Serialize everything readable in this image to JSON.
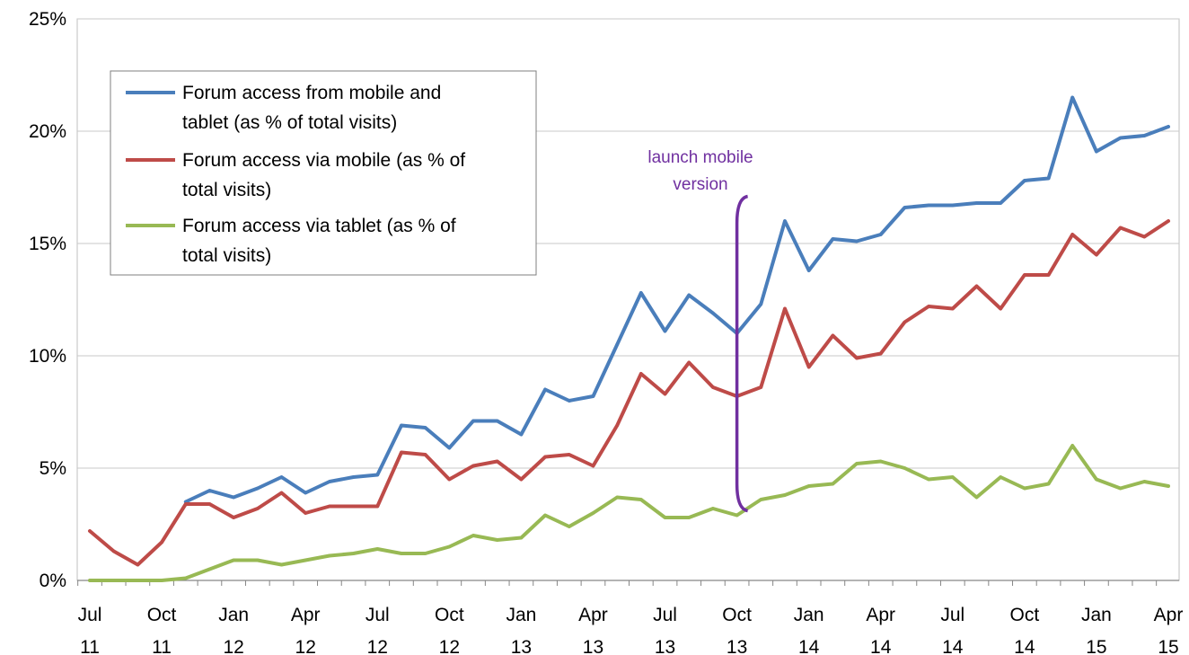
{
  "chart_data": {
    "type": "line",
    "title": "",
    "xlabel": "",
    "ylabel": "",
    "ylim": [
      0,
      25
    ],
    "y_ticks": [
      0,
      5,
      10,
      15,
      20,
      25
    ],
    "y_tick_labels": [
      "0%",
      "5%",
      "10%",
      "15%",
      "20%",
      "25%"
    ],
    "grid": "horizontal",
    "legend_position": "top-left",
    "categories": [
      "Jul 11",
      "Aug 11",
      "Sep 11",
      "Oct 11",
      "Nov 11",
      "Dec 11",
      "Jan 12",
      "Feb 12",
      "Mar 12",
      "Apr 12",
      "May 12",
      "Jun 12",
      "Jul 12",
      "Aug 12",
      "Sep 12",
      "Oct 12",
      "Nov 12",
      "Dec 12",
      "Jan 13",
      "Feb 13",
      "Mar 13",
      "Apr 13",
      "May 13",
      "Jun 13",
      "Jul 13",
      "Aug 13",
      "Sep 13",
      "Oct 13",
      "Nov 13",
      "Dec 13",
      "Jan 14",
      "Feb 14",
      "Mar 14",
      "Apr 14",
      "May 14",
      "Jun 14",
      "Jul 14",
      "Aug 14",
      "Sep 14",
      "Oct 14",
      "Nov 14",
      "Dec 14",
      "Jan 15",
      "Feb 15",
      "Mar 15",
      "Apr 15"
    ],
    "x_tick_labels": [
      {
        "index": 0,
        "month": "Jul",
        "year": "11"
      },
      {
        "index": 3,
        "month": "Oct",
        "year": "11"
      },
      {
        "index": 6,
        "month": "Jan",
        "year": "12"
      },
      {
        "index": 9,
        "month": "Apr",
        "year": "12"
      },
      {
        "index": 12,
        "month": "Jul",
        "year": "12"
      },
      {
        "index": 15,
        "month": "Oct",
        "year": "12"
      },
      {
        "index": 18,
        "month": "Jan",
        "year": "13"
      },
      {
        "index": 21,
        "month": "Apr",
        "year": "13"
      },
      {
        "index": 24,
        "month": "Jul",
        "year": "13"
      },
      {
        "index": 27,
        "month": "Oct",
        "year": "13"
      },
      {
        "index": 30,
        "month": "Jan",
        "year": "14"
      },
      {
        "index": 33,
        "month": "Apr",
        "year": "14"
      },
      {
        "index": 36,
        "month": "Jul",
        "year": "14"
      },
      {
        "index": 39,
        "month": "Oct",
        "year": "14"
      },
      {
        "index": 42,
        "month": "Jan",
        "year": "15"
      },
      {
        "index": 45,
        "month": "Apr",
        "year": "15"
      }
    ],
    "series": [
      {
        "name": "Forum access from mobile and tablet (as % of total visits)",
        "legend_lines": [
          "Forum access from mobile and",
          "tablet (as % of total visits)"
        ],
        "color": "#4a7ebb",
        "values": [
          null,
          null,
          null,
          null,
          3.5,
          4.0,
          3.7,
          4.1,
          4.6,
          3.9,
          4.4,
          4.6,
          4.7,
          6.9,
          6.8,
          5.9,
          7.1,
          7.1,
          6.5,
          8.5,
          8.0,
          8.2,
          10.5,
          12.8,
          11.1,
          12.7,
          11.9,
          11.0,
          12.3,
          16.0,
          13.8,
          15.2,
          15.1,
          15.4,
          16.6,
          16.7,
          16.7,
          16.8,
          16.8,
          17.8,
          17.9,
          21.5,
          19.1,
          19.7,
          19.8,
          20.2
        ]
      },
      {
        "name": "Forum access via mobile (as % of total visits)",
        "legend_lines": [
          "Forum access via mobile (as % of",
          "total visits)"
        ],
        "color": "#be4b48",
        "values": [
          2.2,
          1.3,
          0.7,
          1.7,
          3.4,
          3.4,
          2.8,
          3.2,
          3.9,
          3.0,
          3.3,
          3.3,
          3.3,
          5.7,
          5.6,
          4.5,
          5.1,
          5.3,
          4.5,
          5.5,
          5.6,
          5.1,
          6.9,
          9.2,
          8.3,
          9.7,
          8.6,
          8.2,
          8.6,
          12.1,
          9.5,
          10.9,
          9.9,
          10.1,
          11.5,
          12.2,
          12.1,
          13.1,
          12.1,
          13.6,
          13.6,
          15.4,
          14.5,
          15.7,
          15.3,
          16.0
        ]
      },
      {
        "name": "Forum access via tablet (as % of total visits)",
        "legend_lines": [
          "Forum access via tablet (as % of",
          "total visits)"
        ],
        "color": "#98b954",
        "values": [
          0.0,
          0.0,
          0.0,
          0.0,
          0.1,
          0.5,
          0.9,
          0.9,
          0.7,
          0.9,
          1.1,
          1.2,
          1.4,
          1.2,
          1.2,
          1.5,
          2.0,
          1.8,
          1.9,
          2.9,
          2.4,
          3.0,
          3.7,
          3.6,
          2.8,
          2.8,
          3.2,
          2.9,
          3.6,
          3.8,
          4.2,
          4.3,
          5.2,
          5.3,
          5.0,
          4.5,
          4.6,
          3.7,
          4.6,
          4.1,
          4.3,
          6.0,
          4.5,
          4.1,
          4.4,
          4.2
        ]
      }
    ],
    "annotations": [
      {
        "lines": [
          "launch mobile",
          "version"
        ],
        "color": "#7030a0",
        "x_category": "Oct 13",
        "y_range": [
          3.1,
          17.1
        ]
      }
    ]
  }
}
